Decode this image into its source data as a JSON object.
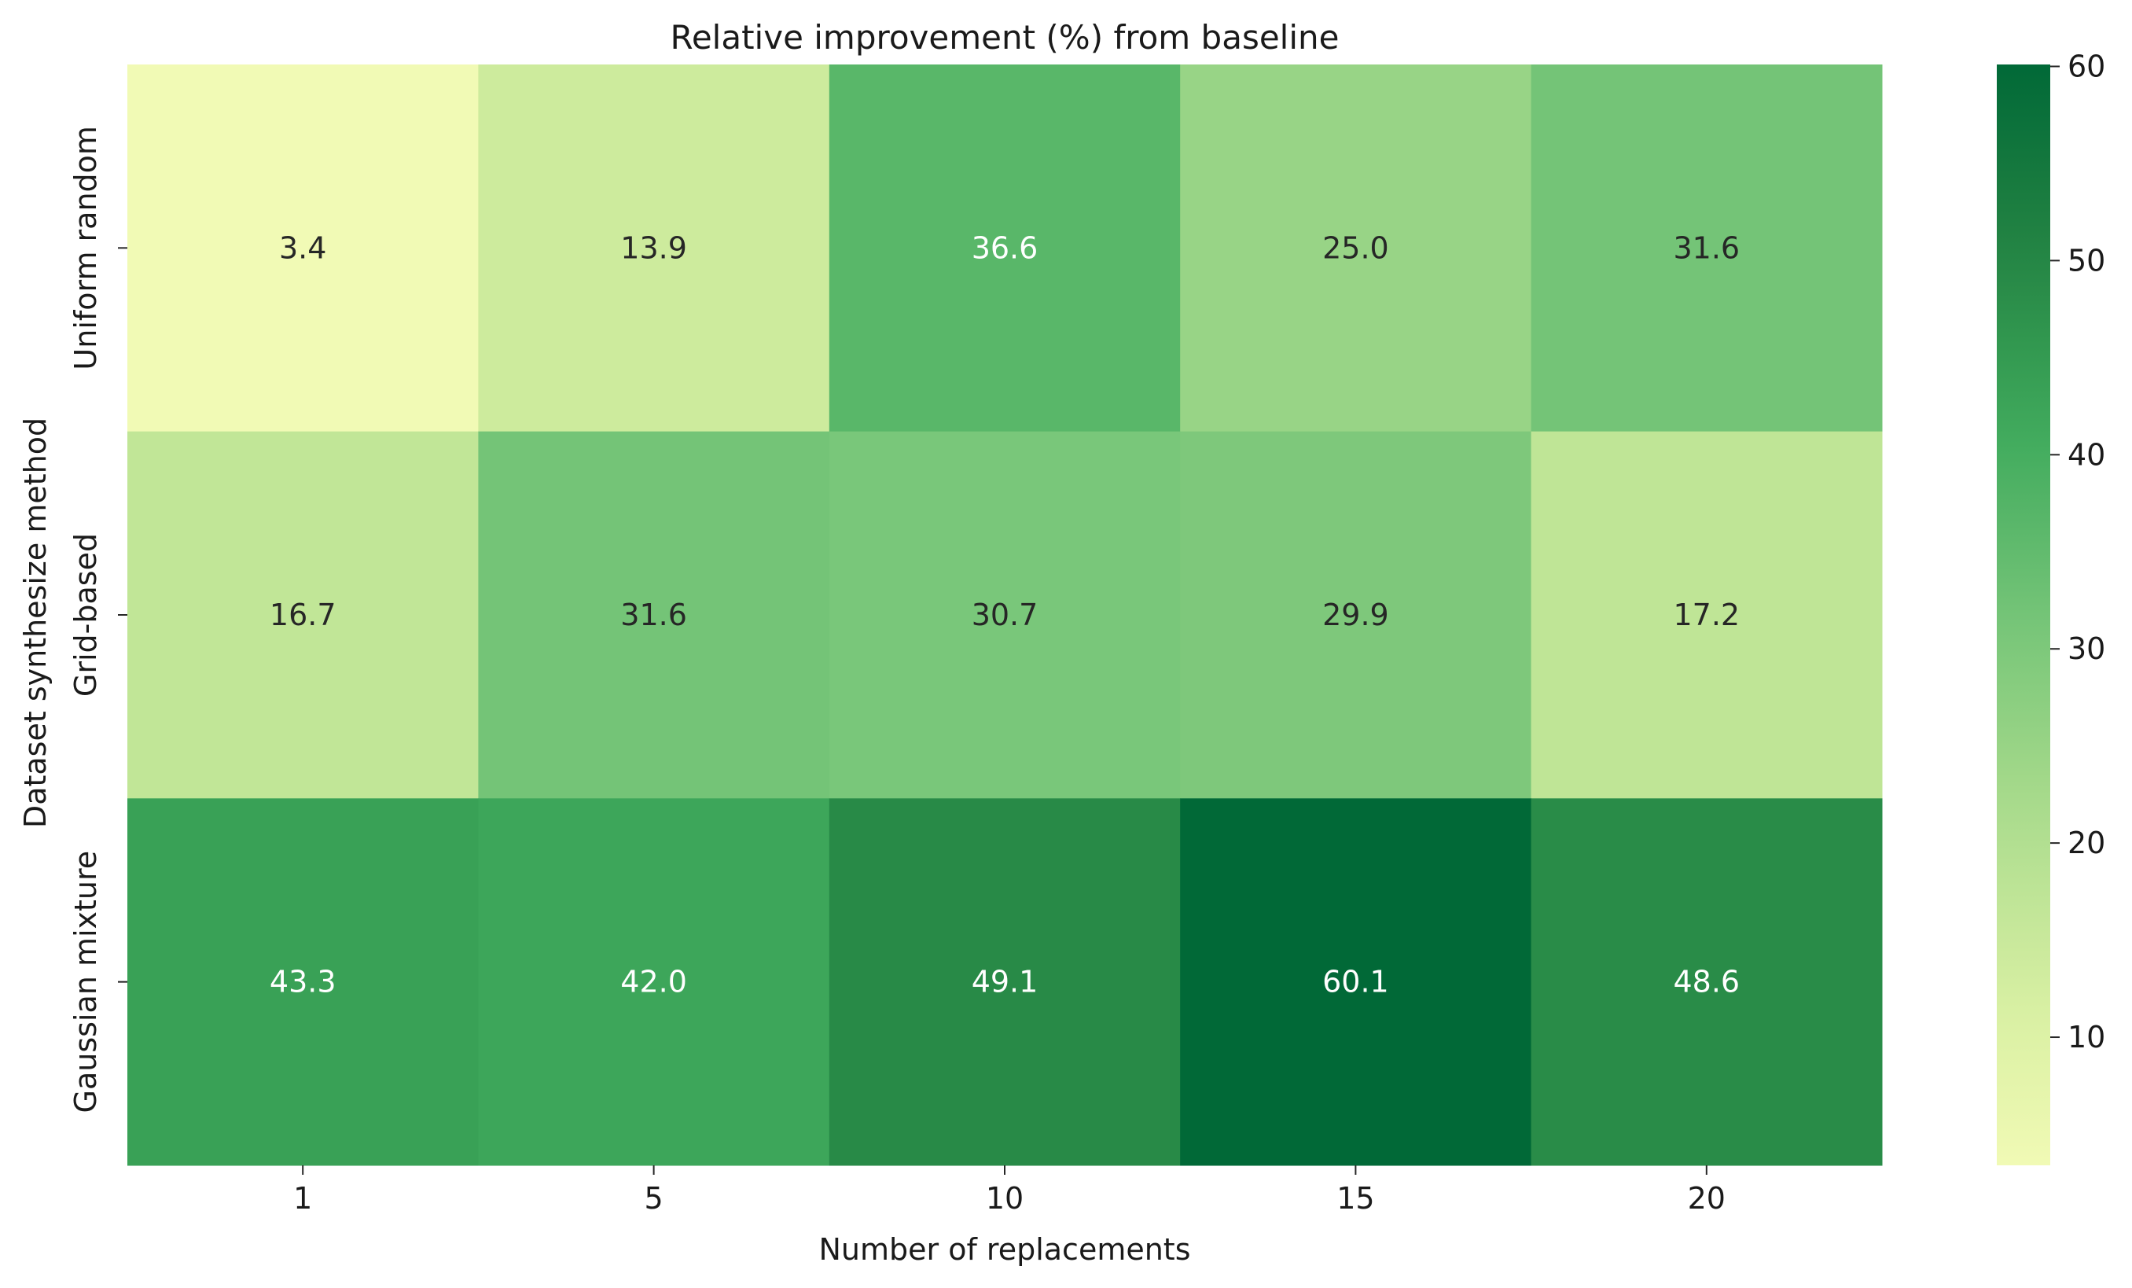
{
  "chart_data": {
    "type": "heatmap",
    "title": "Relative improvement (%) from baseline",
    "xlabel": "Number of replacements",
    "ylabel": "Dataset synthesize method",
    "x_categories": [
      "1",
      "5",
      "10",
      "15",
      "20"
    ],
    "y_categories": [
      "Uniform random",
      "Grid-based",
      "Gaussian mixture"
    ],
    "values": [
      [
        3.4,
        13.9,
        36.6,
        25.0,
        31.6
      ],
      [
        16.7,
        31.6,
        30.7,
        29.9,
        17.2
      ],
      [
        43.3,
        42.0,
        49.1,
        60.1,
        48.6
      ]
    ],
    "value_labels": [
      [
        "3.4",
        "13.9",
        "36.6",
        "25.0",
        "31.6"
      ],
      [
        "16.7",
        "31.6",
        "30.7",
        "29.9",
        "17.2"
      ],
      [
        "43.3",
        "42.0",
        "49.1",
        "60.1",
        "48.6"
      ]
    ],
    "colorbar": {
      "vmin": 3.4,
      "vmax": 60.1,
      "ticks": [
        "10",
        "20",
        "30",
        "40",
        "50",
        "60"
      ],
      "colormap": "YlGn"
    },
    "grid": false,
    "legend": "colorbar-right"
  }
}
